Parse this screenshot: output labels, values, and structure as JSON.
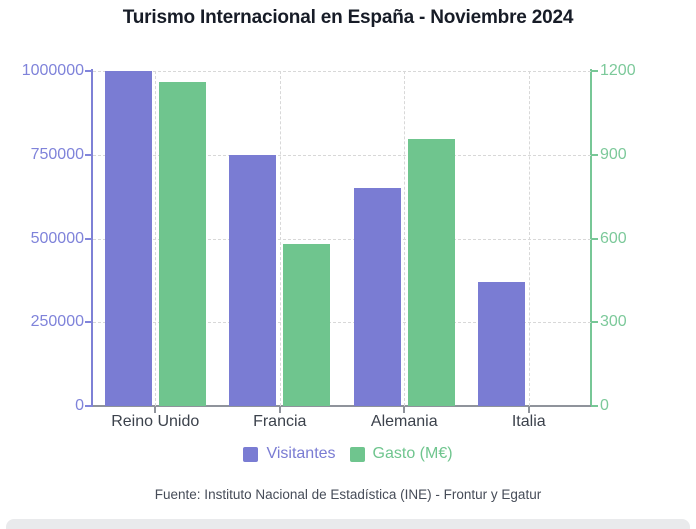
{
  "title": "Turismo Internacional en España - Noviembre 2024",
  "footer": {
    "source": "Fuente: Instituto Nacional de Estadística (INE) - Frontur y Egatur"
  },
  "colors": {
    "visitantes": "#7a7cd3",
    "gasto": "#6fc58e",
    "left_axis_text": "#7f83da",
    "right_axis_text": "#7cc99a",
    "grid": "#d8d8d8",
    "x_axis_line": "#8f939b",
    "title_text": "#171c27",
    "category_text": "#3c424c",
    "footer_text": "#464c58",
    "bottom_bar": "#e9eaec"
  },
  "chart_data": {
    "type": "bar",
    "title": "Turismo Internacional en España - Noviembre 2024",
    "categories": [
      "Reino Unido",
      "Francia",
      "Alemania",
      "Italia"
    ],
    "series": [
      {
        "name": "Visitantes",
        "axis": "left",
        "color_key": "visitantes",
        "values": [
          1000000,
          750000,
          650000,
          370000
        ]
      },
      {
        "name": "Gasto (M€)",
        "axis": "right",
        "color_key": "gasto",
        "values": [
          1160,
          580,
          955,
          null
        ]
      }
    ],
    "left_axis": {
      "min": 0,
      "max": 1000000,
      "ticks": [
        "1000000",
        "750000",
        "500000",
        "250000",
        "0"
      ]
    },
    "right_axis": {
      "min": 0,
      "max": 1200,
      "ticks": [
        "1200",
        "900",
        "600",
        "300",
        "0"
      ]
    },
    "grid": "dashed, horizontal at every tick + vertical at category centers",
    "legend_position": "bottom",
    "xlabel": "",
    "ylabel_left": "",
    "ylabel_right": ""
  }
}
